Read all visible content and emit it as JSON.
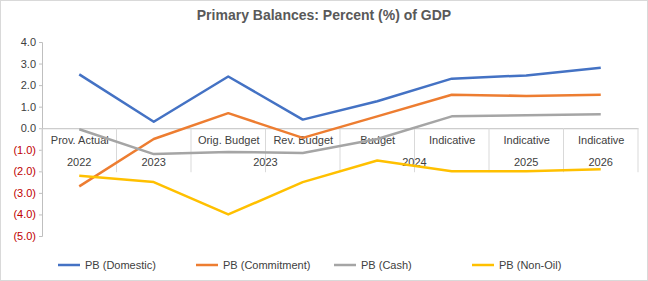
{
  "chart_data": {
    "type": "line",
    "title": "Primary Balances: Percent (%) of GDP",
    "categories": [
      "Prov. Actual",
      null,
      "Orig. Budget",
      "Rev. Budget",
      "Budget",
      "Indicative",
      "Indicative",
      "Indicative"
    ],
    "category_groups": [
      {
        "label": "2022",
        "size": 1
      },
      {
        "label": "2023",
        "size": 1
      },
      {
        "label": "2023",
        "size": 2
      },
      {
        "label": "2024",
        "size": 2
      },
      {
        "label": "2025",
        "size": 1
      },
      {
        "label": "2026",
        "size": 1
      }
    ],
    "series": [
      {
        "name": "PB (Domestic)",
        "color": "#4472c4",
        "values": [
          2.5,
          0.3,
          2.4,
          0.4,
          1.25,
          2.3,
          2.45,
          2.8
        ]
      },
      {
        "name": "PB (Commitment)",
        "color": "#ed7d31",
        "values": [
          -2.7,
          -0.5,
          0.7,
          -0.45,
          0.55,
          1.55,
          1.5,
          1.55
        ]
      },
      {
        "name": "PB (Cash)",
        "color": "#a5a5a5",
        "values": [
          -0.05,
          -1.2,
          -1.1,
          -1.15,
          -0.5,
          0.55,
          0.6,
          0.65
        ]
      },
      {
        "name": "PB (Non-Oil)",
        "color": "#ffc000",
        "values": [
          -2.2,
          -2.5,
          -4.0,
          -2.5,
          -1.5,
          -2.0,
          -2.0,
          -1.9
        ]
      }
    ],
    "ylim": [
      -5,
      4
    ],
    "yticks": [
      {
        "value": 4,
        "label": "4.0"
      },
      {
        "value": 3,
        "label": "3.0"
      },
      {
        "value": 2,
        "label": "2.0"
      },
      {
        "value": 1,
        "label": "1.0"
      },
      {
        "value": 0,
        "label": "0.0"
      },
      {
        "value": -1,
        "label": "(1.0)"
      },
      {
        "value": -2,
        "label": "(2.0)"
      },
      {
        "value": -3,
        "label": "(3.0)"
      },
      {
        "value": -4,
        "label": "(4.0)"
      },
      {
        "value": -5,
        "label": "(5.0)"
      }
    ],
    "grid": false,
    "legend": "bottom"
  }
}
